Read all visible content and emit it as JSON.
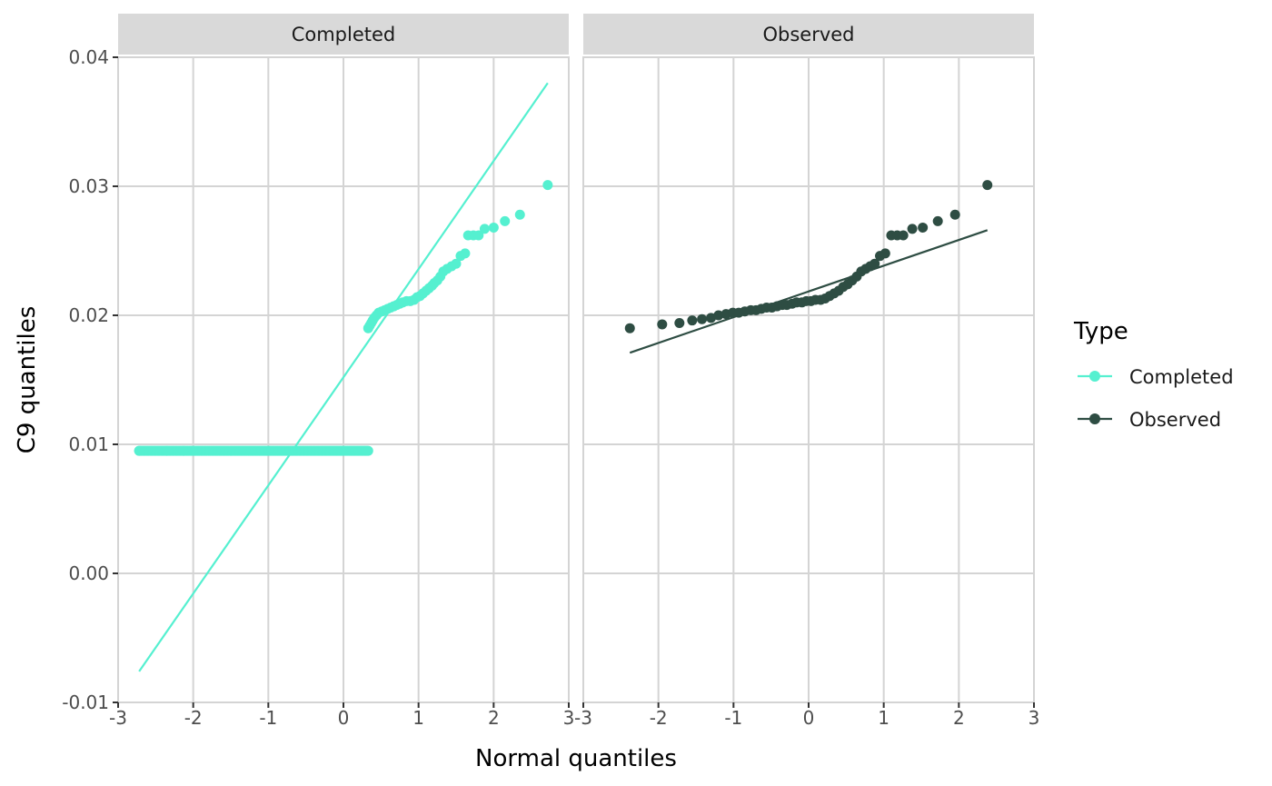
{
  "chart_data": {
    "type": "scatter",
    "subtype": "faceted-qq-plot",
    "xlabel": "Normal quantiles",
    "ylabel": "C9 quantiles",
    "xlim": [
      -3,
      3
    ],
    "ylim": [
      -0.01,
      0.04
    ],
    "x_ticks": [
      -3,
      -2,
      -1,
      0,
      1,
      2,
      3
    ],
    "x_tick_labels": [
      "-3",
      "-2",
      "-1",
      "0",
      "1",
      "2",
      "3"
    ],
    "y_ticks": [
      -0.01,
      0.0,
      0.01,
      0.02,
      0.03,
      0.04
    ],
    "y_tick_labels": [
      "-0.01",
      "0.00",
      "0.01",
      "0.02",
      "0.03",
      "0.04"
    ],
    "grid": true,
    "legend": {
      "title": "Type",
      "position": "right",
      "entries": [
        {
          "label": "Completed",
          "color": "#55f0d0"
        },
        {
          "label": "Observed",
          "color": "#2e4d43"
        }
      ]
    },
    "facets": [
      {
        "label": "Completed",
        "color": "#55f0d0",
        "reference_line": {
          "x": [
            -2.72,
            2.72
          ],
          "y": [
            -0.0076,
            0.038
          ]
        },
        "segments": [
          {
            "x_from": -2.72,
            "x_to": 0.33,
            "y": 0.0095,
            "n": 190
          }
        ],
        "points": [
          {
            "x": -2.72,
            "y": 0.0095
          },
          {
            "x": -2.35,
            "y": 0.0095
          },
          {
            "x": -2.13,
            "y": 0.0095
          },
          {
            "x": 0.33,
            "y": 0.019
          },
          {
            "x": 0.35,
            "y": 0.0192
          },
          {
            "x": 0.37,
            "y": 0.0194
          },
          {
            "x": 0.39,
            "y": 0.0196
          },
          {
            "x": 0.41,
            "y": 0.0198
          },
          {
            "x": 0.44,
            "y": 0.02
          },
          {
            "x": 0.47,
            "y": 0.0202
          },
          {
            "x": 0.51,
            "y": 0.0203
          },
          {
            "x": 0.55,
            "y": 0.0204
          },
          {
            "x": 0.59,
            "y": 0.0205
          },
          {
            "x": 0.63,
            "y": 0.0206
          },
          {
            "x": 0.67,
            "y": 0.0207
          },
          {
            "x": 0.71,
            "y": 0.0208
          },
          {
            "x": 0.75,
            "y": 0.0209
          },
          {
            "x": 0.79,
            "y": 0.021
          },
          {
            "x": 0.84,
            "y": 0.0211
          },
          {
            "x": 0.89,
            "y": 0.0211
          },
          {
            "x": 0.94,
            "y": 0.0212
          },
          {
            "x": 0.98,
            "y": 0.0214
          },
          {
            "x": 1.02,
            "y": 0.0215
          },
          {
            "x": 1.06,
            "y": 0.0217
          },
          {
            "x": 1.1,
            "y": 0.0219
          },
          {
            "x": 1.14,
            "y": 0.0221
          },
          {
            "x": 1.18,
            "y": 0.0223
          },
          {
            "x": 1.21,
            "y": 0.0225
          },
          {
            "x": 1.25,
            "y": 0.0227
          },
          {
            "x": 1.29,
            "y": 0.023
          },
          {
            "x": 1.33,
            "y": 0.0234
          },
          {
            "x": 1.38,
            "y": 0.0236
          },
          {
            "x": 1.44,
            "y": 0.0238
          },
          {
            "x": 1.5,
            "y": 0.024
          },
          {
            "x": 1.56,
            "y": 0.0246
          },
          {
            "x": 1.62,
            "y": 0.0248
          },
          {
            "x": 1.66,
            "y": 0.0262
          },
          {
            "x": 1.73,
            "y": 0.0262
          },
          {
            "x": 1.8,
            "y": 0.0262
          },
          {
            "x": 1.88,
            "y": 0.0267
          },
          {
            "x": 2.0,
            "y": 0.0268
          },
          {
            "x": 2.15,
            "y": 0.0273
          },
          {
            "x": 2.35,
            "y": 0.0278
          },
          {
            "x": 2.72,
            "y": 0.0301
          }
        ]
      },
      {
        "label": "Observed",
        "color": "#2e4d43",
        "reference_line": {
          "x": [
            -2.38,
            2.38
          ],
          "y": [
            0.0171,
            0.0266
          ]
        },
        "segments": [],
        "points": [
          {
            "x": -2.38,
            "y": 0.019
          },
          {
            "x": -1.95,
            "y": 0.0193
          },
          {
            "x": -1.72,
            "y": 0.0194
          },
          {
            "x": -1.55,
            "y": 0.0196
          },
          {
            "x": -1.42,
            "y": 0.0197
          },
          {
            "x": -1.3,
            "y": 0.0198
          },
          {
            "x": -1.2,
            "y": 0.02
          },
          {
            "x": -1.1,
            "y": 0.0201
          },
          {
            "x": -1.01,
            "y": 0.0202
          },
          {
            "x": -0.93,
            "y": 0.0202
          },
          {
            "x": -0.85,
            "y": 0.0203
          },
          {
            "x": -0.77,
            "y": 0.0204
          },
          {
            "x": -0.7,
            "y": 0.0204
          },
          {
            "x": -0.63,
            "y": 0.0205
          },
          {
            "x": -0.56,
            "y": 0.0206
          },
          {
            "x": -0.49,
            "y": 0.0206
          },
          {
            "x": -0.42,
            "y": 0.0207
          },
          {
            "x": -0.35,
            "y": 0.0208
          },
          {
            "x": -0.29,
            "y": 0.0208
          },
          {
            "x": -0.22,
            "y": 0.0209
          },
          {
            "x": -0.16,
            "y": 0.021
          },
          {
            "x": -0.09,
            "y": 0.021
          },
          {
            "x": -0.03,
            "y": 0.0211
          },
          {
            "x": 0.03,
            "y": 0.0211
          },
          {
            "x": 0.09,
            "y": 0.0212
          },
          {
            "x": 0.16,
            "y": 0.0212
          },
          {
            "x": 0.22,
            "y": 0.0213
          },
          {
            "x": 0.28,
            "y": 0.0215
          },
          {
            "x": 0.34,
            "y": 0.0217
          },
          {
            "x": 0.4,
            "y": 0.0219
          },
          {
            "x": 0.46,
            "y": 0.0222
          },
          {
            "x": 0.52,
            "y": 0.0224
          },
          {
            "x": 0.58,
            "y": 0.0227
          },
          {
            "x": 0.64,
            "y": 0.023
          },
          {
            "x": 0.7,
            "y": 0.0234
          },
          {
            "x": 0.76,
            "y": 0.0236
          },
          {
            "x": 0.82,
            "y": 0.0238
          },
          {
            "x": 0.88,
            "y": 0.024
          },
          {
            "x": 0.95,
            "y": 0.0246
          },
          {
            "x": 1.02,
            "y": 0.0248
          },
          {
            "x": 1.1,
            "y": 0.0262
          },
          {
            "x": 1.18,
            "y": 0.0262
          },
          {
            "x": 1.26,
            "y": 0.0262
          },
          {
            "x": 1.38,
            "y": 0.0267
          },
          {
            "x": 1.52,
            "y": 0.0268
          },
          {
            "x": 1.72,
            "y": 0.0273
          },
          {
            "x": 1.95,
            "y": 0.0278
          },
          {
            "x": 2.38,
            "y": 0.0301
          }
        ]
      }
    ]
  }
}
